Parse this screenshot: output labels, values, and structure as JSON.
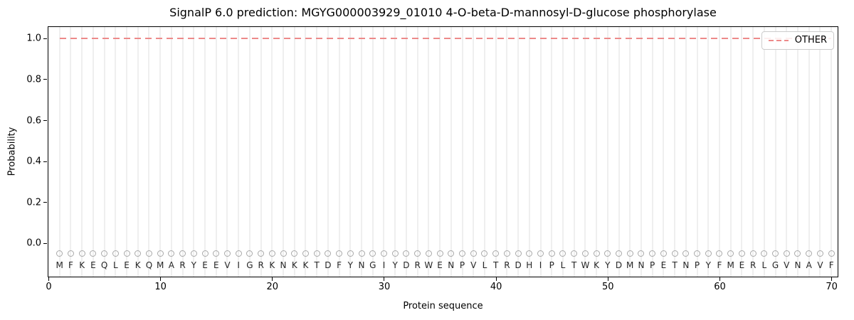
{
  "chart_data": {
    "type": "line",
    "title": "SignalP 6.0 prediction: MGYG000003929_01010 4-O-beta-D-mannosyl-D-glucose phosphorylase",
    "xlabel": "Protein sequence",
    "ylabel": "Probability",
    "xlim": [
      0,
      70.5
    ],
    "ylim": [
      -0.16,
      1.055
    ],
    "xticks": [
      {
        "v": 0,
        "label": "0"
      },
      {
        "v": 10,
        "label": "10"
      },
      {
        "v": 20,
        "label": "20"
      },
      {
        "v": 30,
        "label": "30"
      },
      {
        "v": 40,
        "label": "40"
      },
      {
        "v": 50,
        "label": "50"
      },
      {
        "v": 60,
        "label": "60"
      },
      {
        "v": 70,
        "label": "70"
      }
    ],
    "yticks": [
      {
        "v": 0.0,
        "label": "0.0"
      },
      {
        "v": 0.2,
        "label": "0.2"
      },
      {
        "v": 0.4,
        "label": "0.4"
      },
      {
        "v": 0.6,
        "label": "0.6"
      },
      {
        "v": 0.8,
        "label": "0.8"
      },
      {
        "v": 1.0,
        "label": "1.0"
      }
    ],
    "grid": {
      "vertical_per_residue": true,
      "horizontal": false,
      "color": "#efefef"
    },
    "legend": {
      "position": "upper-right",
      "entries": [
        {
          "label": "OTHER",
          "color": "#ed8a8a",
          "line_style": "dashed"
        }
      ]
    },
    "series": [
      {
        "name": "OTHER",
        "line_style": "dashed",
        "color": "#ed8a8a",
        "x_start": 1,
        "x_end": 70,
        "y_constant": 1.0
      }
    ],
    "sequence": [
      "M",
      "F",
      "K",
      "E",
      "Q",
      "L",
      "E",
      "K",
      "Q",
      "M",
      "A",
      "R",
      "Y",
      "E",
      "E",
      "V",
      "I",
      "G",
      "R",
      "K",
      "N",
      "K",
      "K",
      "T",
      "D",
      "F",
      "Y",
      "N",
      "G",
      "I",
      "Y",
      "D",
      "R",
      "W",
      "E",
      "N",
      "P",
      "V",
      "L",
      "T",
      "R",
      "D",
      "H",
      "I",
      "P",
      "L",
      "T",
      "W",
      "K",
      "Y",
      "D",
      "M",
      "N",
      "P",
      "E",
      "T",
      "N",
      "P",
      "Y",
      "F",
      "M",
      "E",
      "R",
      "L",
      "G",
      "V",
      "N",
      "A",
      "V",
      "F"
    ],
    "residue_markers": {
      "shape": "open-circle",
      "color": "#a9a9a9",
      "y": -0.052
    },
    "sequence_row_y": -0.107
  }
}
